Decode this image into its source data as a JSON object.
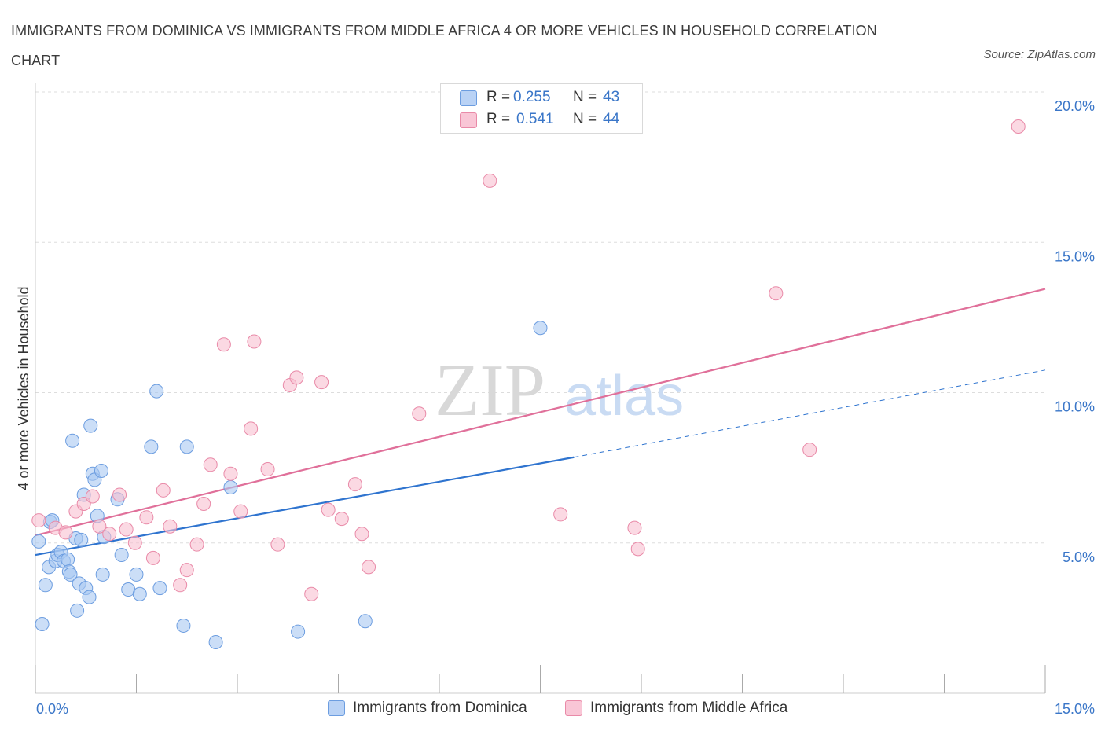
{
  "title": "IMMIGRANTS FROM DOMINICA VS IMMIGRANTS FROM MIDDLE AFRICA 4 OR MORE VEHICLES IN HOUSEHOLD CORRELATION CHART",
  "source": "Source: ZipAtlas.com",
  "watermark": {
    "zip": "ZIP",
    "atlas": "atlas"
  },
  "legend": {
    "series1": {
      "r_label": "R =",
      "r_value": "0.255",
      "n_label": "N =",
      "n_value": "43"
    },
    "series2": {
      "r_label": "R =",
      "r_value": "0.541",
      "n_label": "N =",
      "n_value": "44"
    }
  },
  "colors": {
    "blue_fill": "#a9c8f2",
    "blue_stroke": "#6c9de0",
    "blue_line": "#2f74cf",
    "pink_fill": "#f8bfd0",
    "pink_stroke": "#e98aa8",
    "pink_line": "#e0709a",
    "axis_text": "#3a76c8",
    "grid": "#dddddd"
  },
  "chart_data": {
    "type": "scatter",
    "title": "IMMIGRANTS FROM DOMINICA VS IMMIGRANTS FROM MIDDLE AFRICA 4 OR MORE VEHICLES IN HOUSEHOLD CORRELATION CHART",
    "xlabel": "",
    "ylabel": "4 or more Vehicles in Household",
    "xlim": [
      0,
      15
    ],
    "ylim": [
      0,
      20
    ],
    "x_tick_labels": [
      "0.0%",
      "15.0%"
    ],
    "y_ticks": [
      5,
      10,
      15,
      20
    ],
    "y_tick_labels": [
      "5.0%",
      "10.0%",
      "15.0%",
      "20.0%"
    ],
    "grid": true,
    "legend_position": "top-center",
    "series": [
      {
        "name": "Immigrants from Dominica",
        "color": "#6c9de0",
        "R": 0.255,
        "N": 43,
        "trend": {
          "x0": 0,
          "y0": 4.6,
          "x1": 8.0,
          "y1": 7.85,
          "dash_to_x": 15,
          "dash_to_y": 10.75
        },
        "points": [
          [
            0.05,
            5.05
          ],
          [
            0.1,
            2.3
          ],
          [
            0.15,
            3.6
          ],
          [
            0.2,
            4.2
          ],
          [
            0.22,
            5.7
          ],
          [
            0.25,
            5.75
          ],
          [
            0.3,
            4.4
          ],
          [
            0.33,
            4.6
          ],
          [
            0.38,
            4.7
          ],
          [
            0.42,
            4.4
          ],
          [
            0.48,
            4.45
          ],
          [
            0.5,
            4.05
          ],
          [
            0.52,
            3.95
          ],
          [
            0.55,
            8.4
          ],
          [
            0.6,
            5.15
          ],
          [
            0.62,
            2.75
          ],
          [
            0.65,
            3.65
          ],
          [
            0.68,
            5.1
          ],
          [
            0.72,
            6.6
          ],
          [
            0.75,
            3.5
          ],
          [
            0.8,
            3.2
          ],
          [
            0.82,
            8.9
          ],
          [
            0.85,
            7.3
          ],
          [
            0.88,
            7.1
          ],
          [
            0.92,
            5.9
          ],
          [
            0.98,
            7.4
          ],
          [
            1.0,
            3.95
          ],
          [
            1.02,
            5.2
          ],
          [
            1.22,
            6.45
          ],
          [
            1.28,
            4.6
          ],
          [
            1.38,
            3.45
          ],
          [
            1.5,
            3.95
          ],
          [
            1.55,
            3.3
          ],
          [
            1.72,
            8.2
          ],
          [
            1.8,
            10.05
          ],
          [
            1.85,
            3.5
          ],
          [
            2.2,
            2.25
          ],
          [
            2.25,
            8.2
          ],
          [
            2.68,
            1.7
          ],
          [
            2.9,
            6.85
          ],
          [
            3.9,
            2.05
          ],
          [
            4.9,
            2.4
          ],
          [
            7.5,
            12.15
          ]
        ]
      },
      {
        "name": "Immigrants from Middle Africa",
        "color": "#e98aa8",
        "R": 0.541,
        "N": 44,
        "trend": {
          "x0": 0,
          "y0": 5.25,
          "x1": 15,
          "y1": 13.45
        },
        "points": [
          [
            0.05,
            5.75
          ],
          [
            0.3,
            5.5
          ],
          [
            0.45,
            5.35
          ],
          [
            0.6,
            6.05
          ],
          [
            0.72,
            6.3
          ],
          [
            0.85,
            6.55
          ],
          [
            0.95,
            5.55
          ],
          [
            1.1,
            5.3
          ],
          [
            1.25,
            6.6
          ],
          [
            1.35,
            5.45
          ],
          [
            1.48,
            5.0
          ],
          [
            1.65,
            5.85
          ],
          [
            1.75,
            4.5
          ],
          [
            1.9,
            6.75
          ],
          [
            2.0,
            5.55
          ],
          [
            2.15,
            3.6
          ],
          [
            2.25,
            4.1
          ],
          [
            2.4,
            4.95
          ],
          [
            2.5,
            6.3
          ],
          [
            2.6,
            7.6
          ],
          [
            2.8,
            11.6
          ],
          [
            2.9,
            7.3
          ],
          [
            3.05,
            6.05
          ],
          [
            3.2,
            8.8
          ],
          [
            3.25,
            11.7
          ],
          [
            3.45,
            7.45
          ],
          [
            3.6,
            4.95
          ],
          [
            3.78,
            10.25
          ],
          [
            3.88,
            10.5
          ],
          [
            4.1,
            3.3
          ],
          [
            4.25,
            10.35
          ],
          [
            4.35,
            6.1
          ],
          [
            4.55,
            5.8
          ],
          [
            4.75,
            6.95
          ],
          [
            4.85,
            5.3
          ],
          [
            4.95,
            4.2
          ],
          [
            5.7,
            9.3
          ],
          [
            6.75,
            17.05
          ],
          [
            7.8,
            5.95
          ],
          [
            8.9,
            5.5
          ],
          [
            8.95,
            4.8
          ],
          [
            11.0,
            13.3
          ],
          [
            11.5,
            8.1
          ],
          [
            14.6,
            18.85
          ]
        ]
      }
    ]
  }
}
